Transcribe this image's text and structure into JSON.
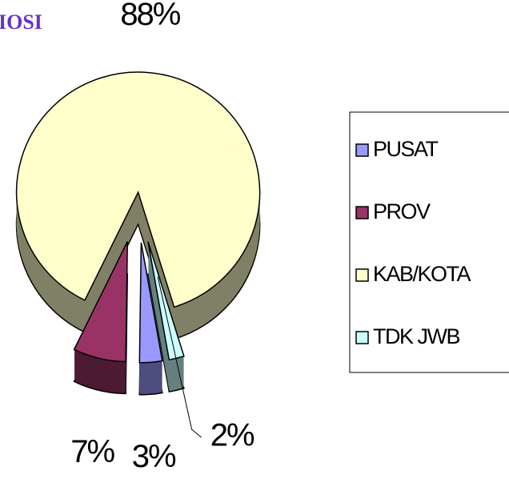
{
  "chart_data": {
    "type": "pie",
    "title": "IOSI",
    "categories": [
      "PUSAT",
      "PROV",
      "KAB/KOTA",
      "TDK JWB"
    ],
    "values": [
      3,
      7,
      88,
      2
    ],
    "value_labels": [
      "3%",
      "7%",
      "88%",
      "2%"
    ],
    "colors": [
      "#9999ff",
      "#993366",
      "#ffffcc",
      "#ccffff"
    ],
    "legend": "right"
  }
}
